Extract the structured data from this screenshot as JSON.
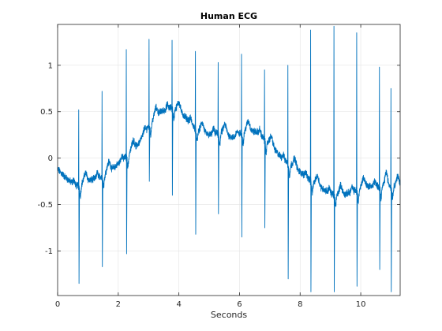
{
  "chart_data": {
    "type": "line",
    "title": "Human ECG",
    "xlabel": "Seconds",
    "ylabel": "",
    "xlim": [
      0,
      11.3
    ],
    "ylim": [
      -1.48,
      1.44
    ],
    "xticks": [
      0,
      2,
      4,
      6,
      8,
      10
    ],
    "xtick_labels": [
      "0",
      "2",
      "4",
      "6",
      "8",
      "10"
    ],
    "yticks": [
      -1,
      -0.5,
      0,
      0.5,
      1
    ],
    "ytick_labels": [
      "-1",
      "-0.5",
      "0",
      "0.5",
      "1"
    ],
    "grid": true,
    "legend": "none",
    "line_color": "#0072bd",
    "baseline": {
      "x": [
        0,
        0.3,
        0.6,
        1.0,
        1.4,
        1.8,
        2.2,
        2.6,
        3.0,
        3.4,
        3.8,
        4.2,
        4.6,
        5.0,
        5.4,
        5.8,
        6.2,
        6.6,
        7.0,
        7.4,
        7.8,
        8.2,
        8.6,
        9.0,
        9.4,
        9.8,
        10.2,
        10.6,
        11.0,
        11.3
      ],
      "y": [
        -0.12,
        -0.22,
        -0.3,
        -0.25,
        -0.2,
        -0.12,
        0.0,
        0.12,
        0.35,
        0.5,
        0.55,
        0.45,
        0.3,
        0.25,
        0.28,
        0.22,
        0.3,
        0.28,
        0.15,
        0.0,
        -0.1,
        -0.2,
        -0.3,
        -0.38,
        -0.4,
        -0.35,
        -0.3,
        -0.3,
        -0.3,
        -0.3
      ]
    },
    "beats": [
      {
        "t": 0.7,
        "r": 0.52,
        "s": -1.35
      },
      {
        "t": 1.47,
        "r": 0.72,
        "s": -1.17
      },
      {
        "t": 2.27,
        "r": 1.17,
        "s": -1.03
      },
      {
        "t": 3.02,
        "r": 1.28,
        "s": -0.25
      },
      {
        "t": 3.78,
        "r": 1.27,
        "s": -0.4
      },
      {
        "t": 4.55,
        "r": 1.15,
        "s": -0.82
      },
      {
        "t": 5.3,
        "r": 1.03,
        "s": -0.6
      },
      {
        "t": 6.07,
        "r": 1.12,
        "s": -0.85
      },
      {
        "t": 6.83,
        "r": 0.95,
        "s": -0.75
      },
      {
        "t": 7.6,
        "r": 1.0,
        "s": -1.3
      },
      {
        "t": 8.35,
        "r": 1.38,
        "s": -1.44
      },
      {
        "t": 9.12,
        "r": 1.42,
        "s": -1.44
      },
      {
        "t": 9.87,
        "r": 1.35,
        "s": -1.38
      },
      {
        "t": 10.62,
        "r": 0.98,
        "s": -1.2
      },
      {
        "t": 11.0,
        "r": 0.75,
        "s": -1.44
      }
    ]
  }
}
